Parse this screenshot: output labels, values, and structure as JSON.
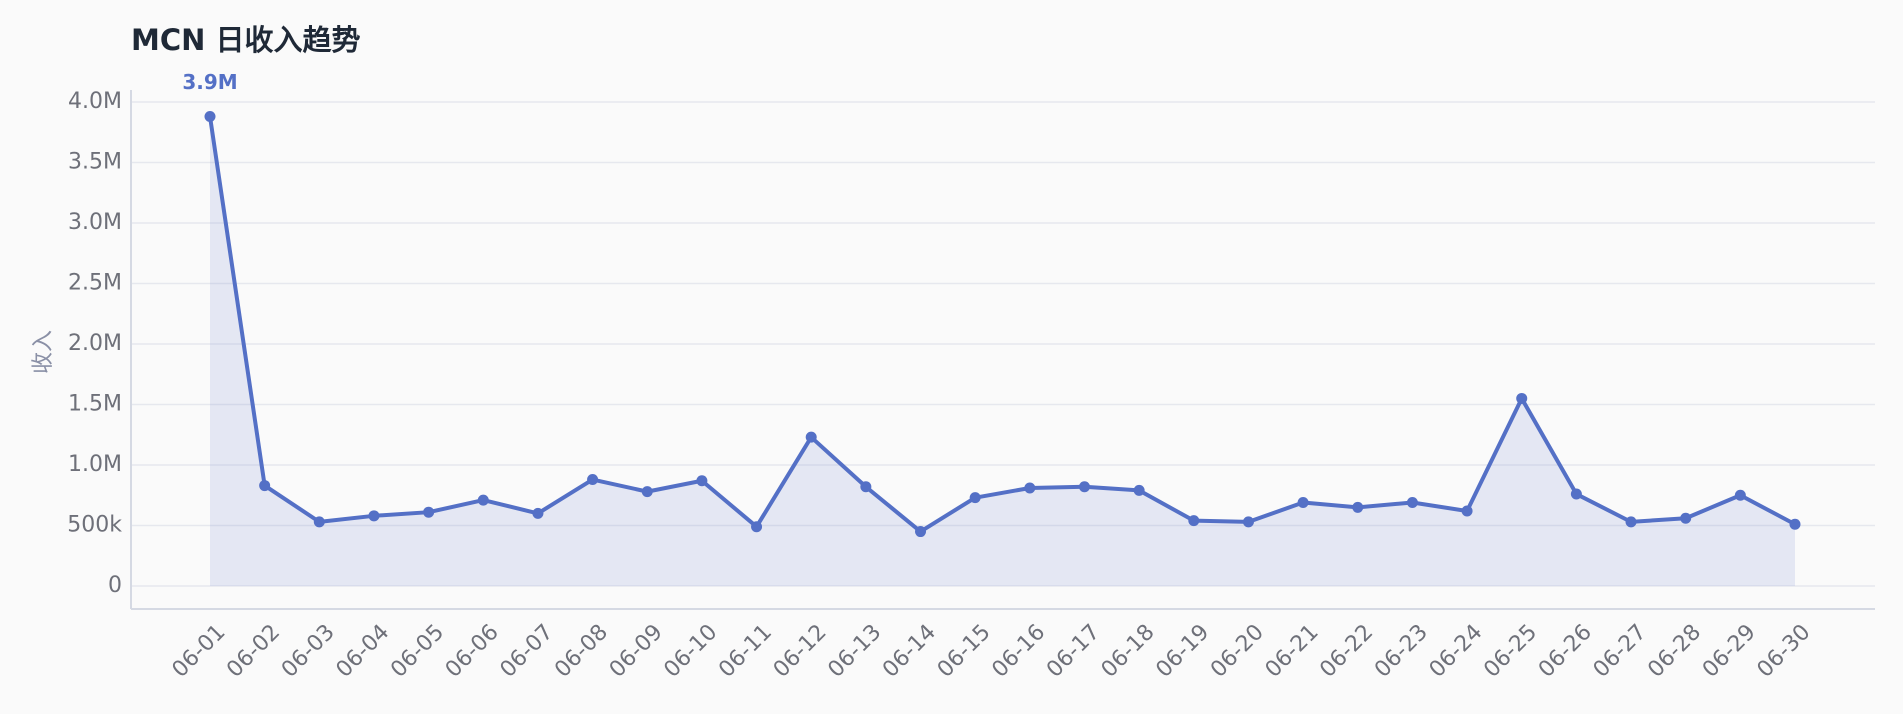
{
  "chart_data": {
    "type": "line",
    "title": "MCN 日收入趋势",
    "y_label": "收入",
    "categories": [
      "06-01",
      "06-02",
      "06-03",
      "06-04",
      "06-05",
      "06-06",
      "06-07",
      "06-08",
      "06-09",
      "06-10",
      "06-11",
      "06-12",
      "06-13",
      "06-14",
      "06-15",
      "06-16",
      "06-17",
      "06-18",
      "06-19",
      "06-20",
      "06-21",
      "06-22",
      "06-23",
      "06-24",
      "06-25",
      "06-26",
      "06-27",
      "06-28",
      "06-29",
      "06-30"
    ],
    "series": [
      {
        "name": "收入",
        "color": "#5470c6",
        "values": [
          3880000,
          830000,
          530000,
          580000,
          610000,
          710000,
          600000,
          880000,
          780000,
          870000,
          490000,
          1230000,
          820000,
          450000,
          730000,
          810000,
          820000,
          790000,
          540000,
          530000,
          690000,
          650000,
          690000,
          620000,
          1550000,
          760000,
          530000,
          560000,
          750000,
          510000
        ],
        "value_labels": [
          "3.9M",
          null,
          null,
          null,
          null,
          null,
          null,
          null,
          null,
          null,
          null,
          null,
          null,
          null,
          null,
          null,
          null,
          null,
          null,
          null,
          null,
          null,
          null,
          null,
          null,
          null,
          null,
          null,
          null,
          null
        ]
      }
    ],
    "ylim": [
      0,
      4000000
    ],
    "yticks": [
      0,
      {
        "value": 500000,
        "label": "500k"
      },
      {
        "value": 1000000,
        "label": "1.0M"
      },
      {
        "value": 1500000,
        "label": "1.5M"
      },
      {
        "value": 2000000,
        "label": "2.0M"
      },
      {
        "value": 2500000,
        "label": "2.5M"
      },
      {
        "value": 3000000,
        "label": "3.0M"
      },
      {
        "value": 3500000,
        "label": "3.5M"
      },
      {
        "value": 4000000,
        "label": "4.0M"
      }
    ],
    "grid": true,
    "area": true
  }
}
